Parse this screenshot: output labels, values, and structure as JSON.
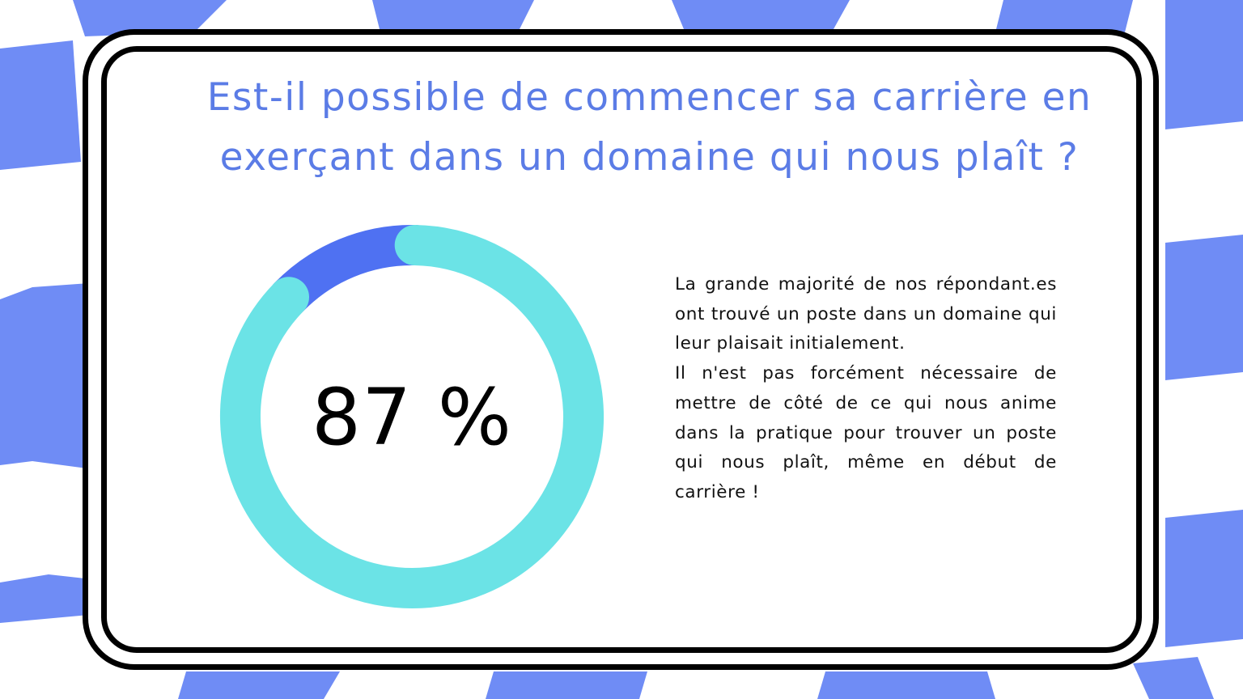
{
  "slide": {
    "title_lines": [
      "Est-il possible de commencer sa carrière en",
      "exerçant dans un domaine qui nous plaît ?"
    ],
    "percentage_label": "87 %",
    "paragraphs": [
      "La grande majorité de nos répondant.es ont trouvé un poste dans un domaine qui leur plaisait initialement.",
      "Il n'est pas forcément nécessaire de mettre de côté de ce qui nous anime dans la pratique pour trouver un poste qui nous plaît, même en début de carrière !"
    ]
  },
  "colors": {
    "title": "#5b7ce6",
    "background_checks": "#6f8cf5",
    "donut_main": "#6be3e6",
    "donut_rest": "#4f71f2"
  },
  "chart_data": {
    "type": "pie",
    "style": "donut",
    "slices": [
      {
        "value": 87,
        "color": "#6be3e6"
      },
      {
        "value": 13,
        "color": "#4f71f2"
      }
    ],
    "center_label": "87 %"
  }
}
